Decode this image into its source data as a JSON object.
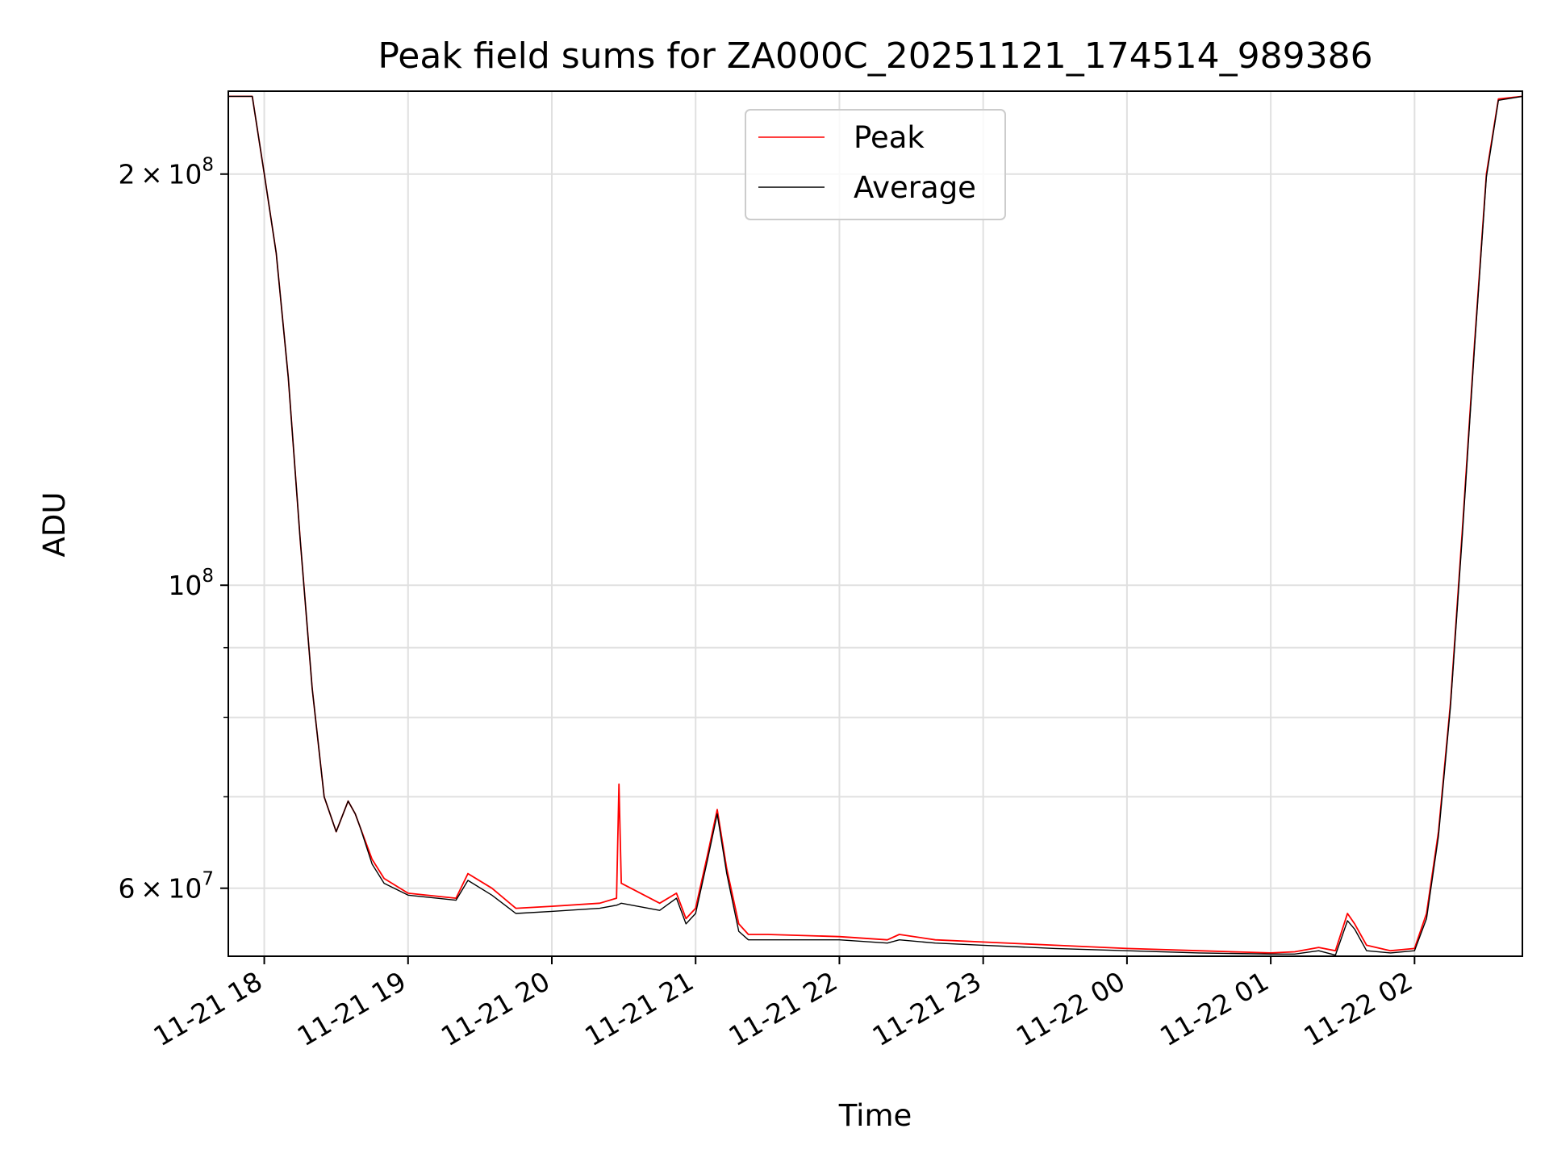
{
  "chart_data": {
    "type": "line",
    "title": "Peak field sums for ZA000C_20251121_174514_989386",
    "xlabel": "Time",
    "ylabel": "ADU",
    "yscale": "log",
    "ylim": [
      53500000,
      230000000
    ],
    "xlim": [
      "2025-11-21 17:45",
      "2025-11-22 02:45"
    ],
    "grid": true,
    "legend_position": "top-center",
    "x_ticks": [
      "11-21 18",
      "11-21 19",
      "11-21 20",
      "11-21 21",
      "11-21 22",
      "11-21 23",
      "11-22 00",
      "11-22 01",
      "11-22 02"
    ],
    "y_ticks_major": [
      {
        "label_base": "10",
        "label_exp": "8",
        "value": 100000000
      },
      {
        "label_base": "",
        "label_exp": "",
        "value": 0
      }
    ],
    "y_tick_labels": [
      {
        "mant": "2",
        "exp": "8",
        "value": 200000000
      },
      {
        "mant": "",
        "exp": "8",
        "value": 100000000
      },
      {
        "mant": "6",
        "exp": "7",
        "value": 60000000
      }
    ],
    "y_minor_ticks": [
      70000000,
      80000000,
      90000000
    ],
    "series": [
      {
        "name": "Peak",
        "color": "#ff0000",
        "x": [
          "2025-11-21 17:45",
          "2025-11-21 17:55",
          "2025-11-21 18:00",
          "2025-11-21 18:05",
          "2025-11-21 18:10",
          "2025-11-21 18:15",
          "2025-11-21 18:20",
          "2025-11-21 18:25",
          "2025-11-21 18:30",
          "2025-11-21 18:35",
          "2025-11-21 18:38",
          "2025-11-21 18:40",
          "2025-11-21 18:45",
          "2025-11-21 18:50",
          "2025-11-21 19:00",
          "2025-11-21 19:20",
          "2025-11-21 19:25",
          "2025-11-21 19:35",
          "2025-11-21 19:45",
          "2025-11-21 20:00",
          "2025-11-21 20:20",
          "2025-11-21 20:27",
          "2025-11-21 20:28",
          "2025-11-21 20:29",
          "2025-11-21 20:45",
          "2025-11-21 20:52",
          "2025-11-21 20:56",
          "2025-11-21 21:00",
          "2025-11-21 21:05",
          "2025-11-21 21:09",
          "2025-11-21 21:13",
          "2025-11-21 21:18",
          "2025-11-21 21:22",
          "2025-11-21 21:30",
          "2025-11-21 22:00",
          "2025-11-21 22:20",
          "2025-11-21 22:25",
          "2025-11-21 22:40",
          "2025-11-21 23:00",
          "2025-11-21 23:30",
          "2025-11-22 00:00",
          "2025-11-22 00:30",
          "2025-11-22 01:00",
          "2025-11-22 01:10",
          "2025-11-22 01:20",
          "2025-11-22 01:27",
          "2025-11-22 01:32",
          "2025-11-22 01:35",
          "2025-11-22 01:40",
          "2025-11-22 01:50",
          "2025-11-22 02:00",
          "2025-11-22 02:05",
          "2025-11-22 02:10",
          "2025-11-22 02:15",
          "2025-11-22 02:20",
          "2025-11-22 02:25",
          "2025-11-22 02:30",
          "2025-11-22 02:35",
          "2025-11-22 02:45"
        ],
        "y": [
          228000000,
          228000000,
          200000000,
          175000000,
          142000000,
          108000000,
          84000000,
          70000000,
          66000000,
          69500000,
          68000000,
          66500000,
          63000000,
          61000000,
          59500000,
          59000000,
          61500000,
          60000000,
          58000000,
          58200000,
          58500000,
          59000000,
          71500000,
          60500000,
          58500000,
          59500000,
          57000000,
          58000000,
          63500000,
          68500000,
          62000000,
          56500000,
          55500000,
          55500000,
          55300000,
          55000000,
          55500000,
          55000000,
          54800000,
          54500000,
          54200000,
          54000000,
          53800000,
          53900000,
          54300000,
          54000000,
          57500000,
          56500000,
          54500000,
          54000000,
          54200000,
          57500000,
          66000000,
          82000000,
          110000000,
          150000000,
          200000000,
          227000000,
          228000000
        ]
      },
      {
        "name": "Average",
        "color": "#000000",
        "x": [
          "2025-11-21 17:45",
          "2025-11-21 17:55",
          "2025-11-21 18:00",
          "2025-11-21 18:05",
          "2025-11-21 18:10",
          "2025-11-21 18:15",
          "2025-11-21 18:20",
          "2025-11-21 18:25",
          "2025-11-21 18:30",
          "2025-11-21 18:35",
          "2025-11-21 18:38",
          "2025-11-21 18:40",
          "2025-11-21 18:45",
          "2025-11-21 18:50",
          "2025-11-21 19:00",
          "2025-11-21 19:20",
          "2025-11-21 19:25",
          "2025-11-21 19:35",
          "2025-11-21 19:45",
          "2025-11-21 20:00",
          "2025-11-21 20:20",
          "2025-11-21 20:27",
          "2025-11-21 20:28",
          "2025-11-21 20:29",
          "2025-11-21 20:45",
          "2025-11-21 20:52",
          "2025-11-21 20:56",
          "2025-11-21 21:00",
          "2025-11-21 21:05",
          "2025-11-21 21:09",
          "2025-11-21 21:13",
          "2025-11-21 21:18",
          "2025-11-21 21:22",
          "2025-11-21 21:30",
          "2025-11-21 22:00",
          "2025-11-21 22:20",
          "2025-11-21 22:25",
          "2025-11-21 22:40",
          "2025-11-21 23:00",
          "2025-11-21 23:30",
          "2025-11-22 00:00",
          "2025-11-22 00:30",
          "2025-11-22 01:00",
          "2025-11-22 01:10",
          "2025-11-22 01:20",
          "2025-11-22 01:27",
          "2025-11-22 01:32",
          "2025-11-22 01:35",
          "2025-11-22 01:40",
          "2025-11-22 01:50",
          "2025-11-22 02:00",
          "2025-11-22 02:05",
          "2025-11-22 02:10",
          "2025-11-22 02:15",
          "2025-11-22 02:20",
          "2025-11-22 02:25",
          "2025-11-22 02:30",
          "2025-11-22 02:35",
          "2025-11-22 02:45"
        ],
        "y": [
          228000000,
          228000000,
          200000000,
          175000000,
          142000000,
          108000000,
          84000000,
          70000000,
          66000000,
          69500000,
          68000000,
          66500000,
          62500000,
          60500000,
          59300000,
          58800000,
          60800000,
          59300000,
          57500000,
          57700000,
          58000000,
          58300000,
          58400000,
          58500000,
          57800000,
          59000000,
          56500000,
          57500000,
          63000000,
          68000000,
          61500000,
          55800000,
          55000000,
          55000000,
          55000000,
          54700000,
          55000000,
          54700000,
          54500000,
          54200000,
          54000000,
          53800000,
          53700000,
          53700000,
          54000000,
          53600000,
          56800000,
          56000000,
          54000000,
          53800000,
          54000000,
          57000000,
          65500000,
          81500000,
          109000000,
          149000000,
          199000000,
          226500000,
          228000000
        ]
      }
    ]
  }
}
